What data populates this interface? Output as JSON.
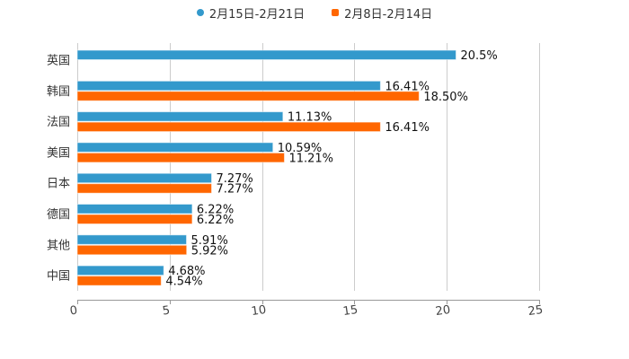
{
  "chart_data": {
    "type": "bar",
    "orientation": "horizontal",
    "title": "",
    "xlabel": "",
    "ylabel": "",
    "xlim": [
      0,
      25
    ],
    "x_ticks": [
      0,
      5,
      10,
      15,
      20,
      25
    ],
    "grid": true,
    "legend_position": "top",
    "categories": [
      "英国",
      "韩国",
      "法国",
      "美国",
      "日本",
      "德国",
      "其他",
      "中国"
    ],
    "series": [
      {
        "name": "2月15日-2月21日",
        "color": "#3399cc",
        "values": [
          20.5,
          16.41,
          11.13,
          10.59,
          7.27,
          6.22,
          5.91,
          4.68
        ],
        "labels": [
          "20.5%",
          "16.41%",
          "11.13%",
          "10.59%",
          "7.27%",
          "6.22%",
          "5.91%",
          "4.68%"
        ]
      },
      {
        "name": "2月8日-2月14日",
        "color": "#ff6600",
        "values": [
          null,
          18.5,
          16.41,
          11.21,
          7.27,
          6.22,
          5.92,
          4.54
        ],
        "labels": [
          "",
          "18.50%",
          "16.41%",
          "11.21%",
          "7.27%",
          "6.22%",
          "5.92%",
          "4.54%"
        ]
      }
    ]
  },
  "legend": {
    "items": [
      {
        "label": "2月15日-2月21日",
        "color": "#3399cc",
        "marker": "circle"
      },
      {
        "label": "2月8日-2月14日",
        "color": "#ff6600",
        "marker": "square"
      }
    ]
  }
}
